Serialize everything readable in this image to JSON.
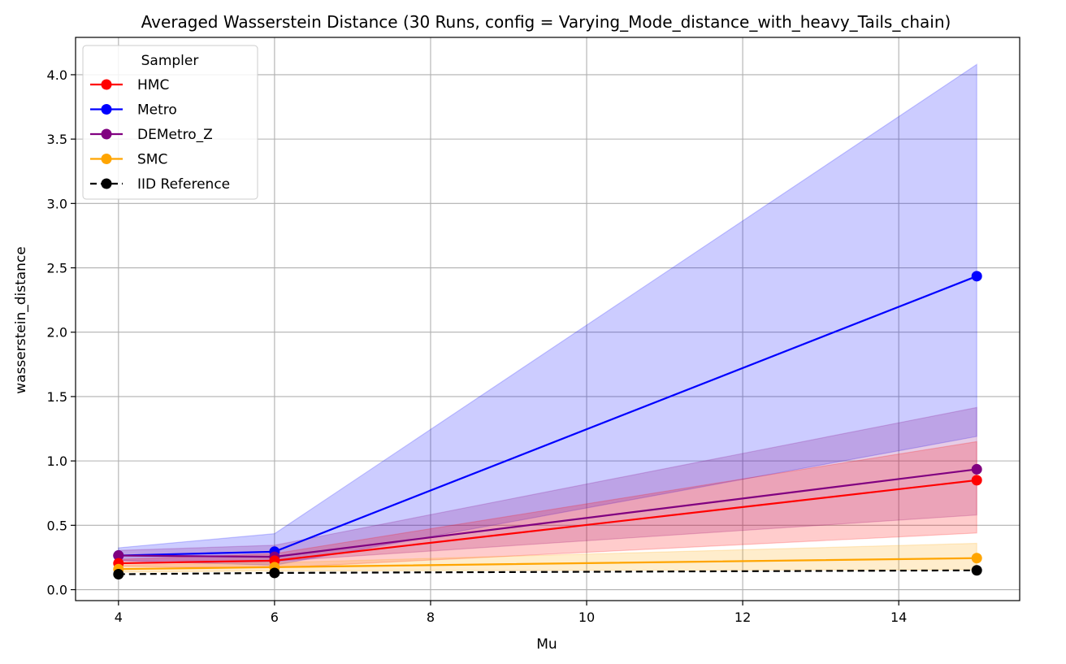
{
  "chart_data": {
    "type": "line",
    "title": "Averaged Wasserstein Distance (30 Runs, config = Varying_Mode_distance_with_heavy_Tails_chain)",
    "xlabel": "Mu",
    "ylabel": "wasserstein_distance",
    "x": [
      4,
      6,
      15
    ],
    "xlim": [
      3.45,
      15.55
    ],
    "ylim": [
      -0.085,
      4.29
    ],
    "xticks": [
      4,
      6,
      8,
      10,
      12,
      14
    ],
    "yticks": [
      0.0,
      0.5,
      1.0,
      1.5,
      2.0,
      2.5,
      3.0,
      3.5,
      4.0
    ],
    "ytick_labels": [
      "0.0",
      "0.5",
      "1.0",
      "1.5",
      "2.0",
      "2.5",
      "3.0",
      "3.5",
      "4.0"
    ],
    "grid": true,
    "legend": {
      "title": "Sampler",
      "placement": "top-left"
    },
    "series": [
      {
        "name": "Metro",
        "color": "#0000ff",
        "dashed": false,
        "values": [
          0.265,
          0.295,
          2.435
        ],
        "lower": [
          0.225,
          0.19,
          1.19
        ],
        "upper": [
          0.325,
          0.435,
          4.08
        ]
      },
      {
        "name": "DEMetro_Z",
        "color": "#800080",
        "dashed": false,
        "values": [
          0.265,
          0.255,
          0.935
        ],
        "lower": [
          0.225,
          0.22,
          0.58
        ],
        "upper": [
          0.305,
          0.345,
          1.415
        ]
      },
      {
        "name": "HMC",
        "color": "#ff0000",
        "dashed": false,
        "values": [
          0.205,
          0.225,
          0.85
        ],
        "lower": [
          0.18,
          0.17,
          0.44
        ],
        "upper": [
          0.235,
          0.28,
          1.15
        ]
      },
      {
        "name": "SMC",
        "color": "#ffa500",
        "dashed": false,
        "values": [
          0.16,
          0.175,
          0.245
        ],
        "lower": [
          0.135,
          0.145,
          0.155
        ],
        "upper": [
          0.19,
          0.21,
          0.36
        ]
      },
      {
        "name": "IID Reference",
        "color": "#000000",
        "dashed": true,
        "values": [
          0.12,
          0.13,
          0.15
        ]
      }
    ],
    "legend_order": [
      "HMC",
      "Metro",
      "DEMetro_Z",
      "SMC",
      "IID Reference"
    ]
  }
}
